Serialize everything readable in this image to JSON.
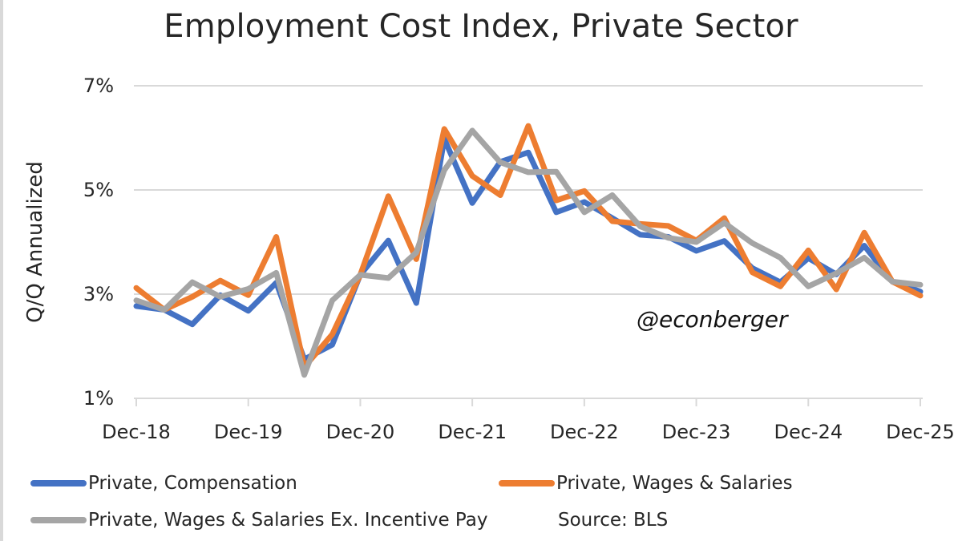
{
  "chart_data": {
    "type": "line",
    "title": "Employment Cost Index, Private Sector",
    "xlabel": "",
    "ylabel": "Q/Q Annualized",
    "ylim": [
      1,
      7
    ],
    "yticks": [
      "7%",
      "5%",
      "3%",
      "1%"
    ],
    "ytick_values": [
      7,
      5,
      3,
      1
    ],
    "xtick_labels": [
      "Dec-18",
      "Dec-19",
      "Dec-20",
      "Dec-21",
      "Dec-22",
      "Dec-23",
      "Dec-24",
      "Dec-25"
    ],
    "grid": true,
    "legend_position": "bottom",
    "x": [
      "Dec-18",
      "Mar-19",
      "Jun-19",
      "Sep-19",
      "Dec-19",
      "Mar-20",
      "Jun-20",
      "Sep-20",
      "Dec-20",
      "Mar-21",
      "Jun-21",
      "Sep-21",
      "Dec-21",
      "Mar-22",
      "Jun-22",
      "Sep-22",
      "Dec-22",
      "Mar-23",
      "Jun-23",
      "Sep-23",
      "Dec-23",
      "Mar-24",
      "Jun-24",
      "Sep-24",
      "Dec-24",
      "Mar-25",
      "Jun-25",
      "Sep-25",
      "Dec-25"
    ],
    "series": [
      {
        "name": "Private, Compensation",
        "color": "#4472c4",
        "values": [
          2.77,
          2.7,
          2.42,
          2.98,
          2.68,
          3.22,
          1.75,
          2.03,
          3.37,
          4.03,
          2.83,
          5.98,
          4.75,
          5.54,
          5.72,
          4.57,
          4.77,
          4.46,
          4.14,
          4.1,
          3.83,
          4.02,
          3.5,
          3.23,
          3.69,
          3.38,
          3.93,
          3.24,
          3.05
        ]
      },
      {
        "name": "Private, Wages & Salaries",
        "color": "#ed7d31",
        "values": [
          3.12,
          2.7,
          2.95,
          3.26,
          2.98,
          4.1,
          1.6,
          2.23,
          3.37,
          4.88,
          3.67,
          6.17,
          5.27,
          4.9,
          6.23,
          4.8,
          4.98,
          4.4,
          4.35,
          4.31,
          4.03,
          4.46,
          3.42,
          3.15,
          3.84,
          3.09,
          4.18,
          3.24,
          2.97
        ]
      },
      {
        "name": "Private, Wages & Salaries Ex. Incentive Pay",
        "color": "#a5a5a5",
        "values": [
          2.88,
          2.7,
          3.23,
          2.95,
          3.1,
          3.41,
          1.45,
          2.88,
          3.37,
          3.31,
          3.8,
          5.38,
          6.14,
          5.53,
          5.34,
          5.35,
          4.57,
          4.9,
          4.3,
          4.08,
          4.0,
          4.37,
          3.98,
          3.7,
          3.15,
          3.4,
          3.7,
          3.24,
          3.18
        ]
      }
    ],
    "annotations": [
      "@econberger",
      "Source: BLS"
    ]
  },
  "watermark": "@econberger",
  "source": "Source: BLS"
}
